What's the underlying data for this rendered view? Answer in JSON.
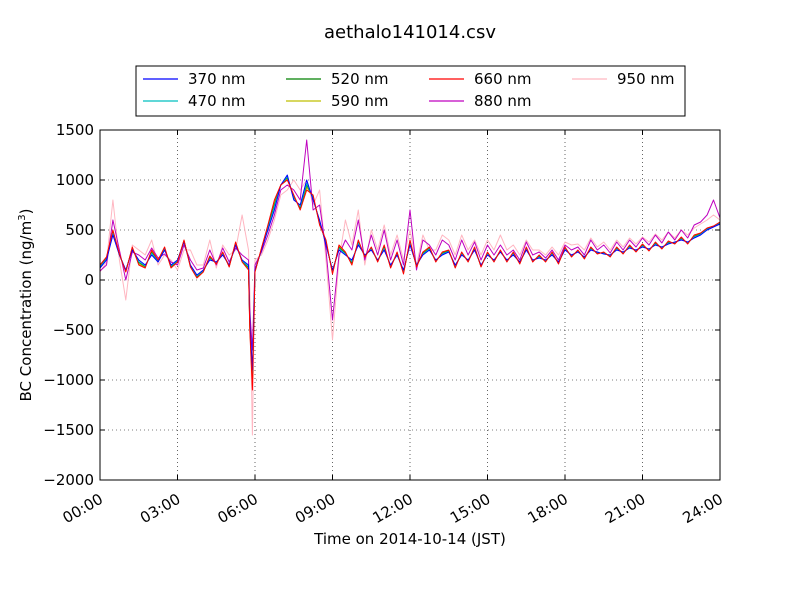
{
  "chart_data": {
    "type": "line",
    "title": "aethalo141014.csv",
    "xlabel": "Time on 2014-10-14 (JST)",
    "ylabel_main": "BC Concentration (ng/m",
    "ylabel_sup": "3",
    "ylabel_end": ")",
    "xlim": [
      0,
      24
    ],
    "ylim": [
      -2000,
      1500
    ],
    "grid": true,
    "legend_position": "top",
    "x_ticks": [
      {
        "value": 0,
        "label": "00:00"
      },
      {
        "value": 3,
        "label": "03:00"
      },
      {
        "value": 6,
        "label": "06:00"
      },
      {
        "value": 9,
        "label": "09:00"
      },
      {
        "value": 12,
        "label": "12:00"
      },
      {
        "value": 15,
        "label": "15:00"
      },
      {
        "value": 18,
        "label": "18:00"
      },
      {
        "value": 21,
        "label": "21:00"
      },
      {
        "value": 24,
        "label": "24:00"
      }
    ],
    "y_ticks": [
      {
        "value": 1500,
        "label": "1500"
      },
      {
        "value": 1000,
        "label": "1000"
      },
      {
        "value": 500,
        "label": "500"
      },
      {
        "value": 0,
        "label": "0"
      },
      {
        "value": -500,
        "label": "−500"
      },
      {
        "value": -1000,
        "label": "−1000"
      },
      {
        "value": -1500,
        "label": "−1500"
      },
      {
        "value": -2000,
        "label": "−2000"
      }
    ],
    "series": [
      {
        "name": "370 nm",
        "color": "#0000ff"
      },
      {
        "name": "470 nm",
        "color": "#00bfbf"
      },
      {
        "name": "520 nm",
        "color": "#008000"
      },
      {
        "name": "590 nm",
        "color": "#bfbf00"
      },
      {
        "name": "660 nm",
        "color": "#ff0000"
      },
      {
        "name": "880 nm",
        "color": "#bf00bf"
      },
      {
        "name": "950 nm",
        "color": "#ffb6c1"
      }
    ],
    "x": [
      0.0,
      0.25,
      0.5,
      0.75,
      1.0,
      1.25,
      1.5,
      1.75,
      2.0,
      2.25,
      2.5,
      2.75,
      3.0,
      3.25,
      3.5,
      3.75,
      4.0,
      4.25,
      4.5,
      4.75,
      5.0,
      5.25,
      5.5,
      5.75,
      5.8,
      5.9,
      6.0,
      6.25,
      6.5,
      6.75,
      7.0,
      7.25,
      7.5,
      7.75,
      8.0,
      8.25,
      8.5,
      8.75,
      9.0,
      9.25,
      9.5,
      9.75,
      10.0,
      10.25,
      10.5,
      10.75,
      11.0,
      11.25,
      11.5,
      11.75,
      12.0,
      12.25,
      12.5,
      12.75,
      13.0,
      13.25,
      13.5,
      13.75,
      14.0,
      14.25,
      14.5,
      14.75,
      15.0,
      15.25,
      15.5,
      15.75,
      16.0,
      16.25,
      16.5,
      16.75,
      17.0,
      17.25,
      17.5,
      17.75,
      18.0,
      18.25,
      18.5,
      18.75,
      19.0,
      19.25,
      19.5,
      19.75,
      20.0,
      20.25,
      20.5,
      20.75,
      21.0,
      21.25,
      21.5,
      21.75,
      22.0,
      22.25,
      22.5,
      22.75,
      23.0,
      23.25,
      23.5,
      23.75,
      24.0
    ],
    "values_370nm": [
      120,
      200,
      450,
      250,
      100,
      300,
      200,
      150,
      250,
      180,
      300,
      150,
      200,
      380,
      150,
      50,
      100,
      200,
      180,
      250,
      150,
      350,
      200,
      150,
      -400,
      -900,
      100,
      300,
      500,
      700,
      950,
      1050,
      800,
      750,
      1000,
      800,
      600,
      350,
      100,
      300,
      250,
      200,
      350,
      250,
      300,
      200,
      300,
      150,
      250,
      100,
      350,
      150,
      250,
      300,
      200,
      250,
      280,
      150,
      250,
      200,
      300,
      150,
      250,
      200,
      280,
      200,
      250,
      180,
      300,
      200,
      220,
      200,
      250,
      180,
      300,
      250,
      280,
      230,
      300,
      280,
      260,
      250,
      300,
      280,
      320,
      300,
      330,
      310,
      350,
      330,
      360,
      380,
      400,
      380,
      420,
      450,
      500,
      530,
      560
    ],
    "values_660nm": [
      150,
      230,
      500,
      260,
      80,
      330,
      150,
      120,
      300,
      200,
      330,
      120,
      180,
      400,
      130,
      20,
      80,
      240,
      160,
      280,
      130,
      380,
      180,
      100,
      -500,
      -1100,
      80,
      320,
      550,
      800,
      950,
      1000,
      850,
      700,
      900,
      850,
      550,
      400,
      60,
      350,
      280,
      150,
      400,
      230,
      330,
      180,
      350,
      120,
      280,
      60,
      400,
      130,
      280,
      330,
      180,
      280,
      300,
      120,
      280,
      180,
      330,
      130,
      280,
      180,
      300,
      180,
      280,
      160,
      330,
      180,
      250,
      180,
      280,
      160,
      330,
      230,
      300,
      210,
      330,
      260,
      280,
      230,
      330,
      260,
      350,
      280,
      360,
      290,
      380,
      310,
      390,
      360,
      430,
      360,
      450,
      470,
      520,
      540,
      580
    ],
    "values_880nm": [
      90,
      150,
      600,
      300,
      0,
      280,
      250,
      200,
      320,
      220,
      260,
      180,
      150,
      350,
      200,
      100,
      120,
      300,
      150,
      320,
      180,
      320,
      250,
      200,
      -300,
      -700,
      150,
      280,
      450,
      650,
      900,
      950,
      900,
      800,
      1400,
      700,
      750,
      300,
      -400,
      250,
      400,
      300,
      600,
      200,
      450,
      250,
      500,
      200,
      400,
      150,
      700,
      100,
      400,
      350,
      250,
      400,
      350,
      200,
      400,
      250,
      380,
      200,
      350,
      250,
      350,
      250,
      300,
      200,
      380,
      250,
      280,
      220,
      300,
      200,
      350,
      300,
      330,
      250,
      400,
      300,
      350,
      270,
      380,
      300,
      400,
      330,
      420,
      350,
      450,
      370,
      480,
      400,
      500,
      420,
      550,
      580,
      650,
      800,
      620
    ],
    "values_950nm": [
      80,
      180,
      800,
      200,
      -200,
      350,
      300,
      250,
      400,
      150,
      250,
      200,
      100,
      300,
      300,
      150,
      150,
      400,
      120,
      350,
      250,
      300,
      650,
      300,
      -100,
      -1550,
      200,
      250,
      400,
      600,
      850,
      900,
      1000,
      900,
      1000,
      750,
      900,
      200,
      -600,
      200,
      600,
      350,
      700,
      150,
      500,
      300,
      550,
      250,
      450,
      200,
      500,
      150,
      450,
      300,
      300,
      450,
      400,
      250,
      450,
      300,
      400,
      250,
      400,
      300,
      450,
      300,
      350,
      250,
      400,
      300,
      300,
      250,
      330,
      250,
      380,
      350,
      360,
      300,
      420,
      330,
      380,
      300,
      400,
      330,
      420,
      360,
      430,
      380,
      460,
      400,
      480,
      420,
      500,
      450,
      520,
      560,
      600,
      650,
      600
    ]
  }
}
